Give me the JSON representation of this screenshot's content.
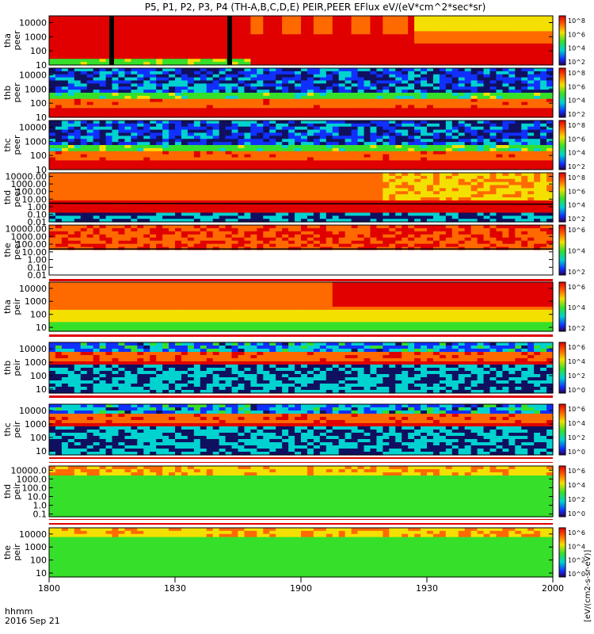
{
  "title": "P5, P1, P2, P3, P4 (TH-A,B,C,D,E) PEIR,PEER EFlux eV/(eV*cm^2*sec*sr)",
  "chart_data": {
    "type": "heatmap",
    "title": "P5, P1, P2, P3, P4 (TH-A,B,C,D,E) PEIR,PEER EFlux eV/(eV*cm^2*sec*sr)",
    "xlabel": "hhmm",
    "date": "2016 Sep 21",
    "x_ticks": [
      "1800",
      "1830",
      "1900",
      "1930",
      "2000"
    ],
    "x_range_minutes": [
      0,
      120
    ],
    "colorbar_label": "[eV/(cm2-s-sr-eV)]",
    "colors": {
      "red": "#e00000",
      "orange": "#ff6a00",
      "yellow": "#f4e000",
      "green": "#36e02a",
      "cyan": "#00d2d0",
      "blue": "#1030ff",
      "navy": "#101060"
    },
    "panels": [
      {
        "id": "tha-peer",
        "line1": "tha",
        "line2": "peer",
        "ylog": [
          10,
          30000
        ],
        "yticks": [
          "10",
          "100",
          "1000",
          "10000"
        ],
        "cbar": [
          "10^2",
          "10^4",
          "10^6",
          "10^8"
        ],
        "style": "tha-peer"
      },
      {
        "id": "thb-peer",
        "line1": "thb",
        "line2": "peer",
        "ylog": [
          10,
          30000
        ],
        "yticks": [
          "10",
          "100",
          "1000",
          "10000"
        ],
        "cbar": [
          "10^2",
          "10^4",
          "10^6",
          "10^8"
        ],
        "style": "noisy-electron"
      },
      {
        "id": "thc-peer",
        "line1": "thc",
        "line2": "peer",
        "ylog": [
          10,
          30000
        ],
        "yticks": [
          "10",
          "100",
          "1000",
          "10000"
        ],
        "cbar": [
          "10^2",
          "10^4",
          "10^6",
          "10^8"
        ],
        "style": "noisy-electron"
      },
      {
        "id": "thd-peer",
        "line1": "thd",
        "line2": "peer",
        "ylog": [
          0.01,
          30000
        ],
        "yticks": [
          "0.01",
          "0.10",
          "1.00",
          "10.00",
          "100.00",
          "1000.00",
          "10000.00"
        ],
        "cbar": [
          "10^2",
          "10^4",
          "10^6",
          "10^8"
        ],
        "style": "thd-peer"
      },
      {
        "id": "the-peer",
        "line1": "the",
        "line2": "peer",
        "ylog": [
          0.01,
          30000
        ],
        "yticks": [
          "0.01",
          "0.10",
          "1.00",
          "10.00",
          "100.00",
          "1000.00",
          "10000.00"
        ],
        "cbar": [
          "10^2",
          "10^4",
          "10^6"
        ],
        "style": "the-peer"
      },
      {
        "id": "tha-peir",
        "line1": "tha",
        "line2": "peir",
        "ylog": [
          5,
          30000
        ],
        "yticks": [
          "10",
          "100",
          "1000",
          "10000"
        ],
        "cbar": [
          "10^2",
          "10^4",
          "10^6"
        ],
        "style": "tha-peir"
      },
      {
        "id": "thb-peir",
        "line1": "thb",
        "line2": "peir",
        "ylog": [
          5,
          30000
        ],
        "yticks": [
          "10",
          "100",
          "1000",
          "10000"
        ],
        "cbar": [
          "10^0",
          "10^2",
          "10^4",
          "10^6"
        ],
        "style": "noisy-ion"
      },
      {
        "id": "thc-peir",
        "line1": "thc",
        "line2": "peir",
        "ylog": [
          5,
          30000
        ],
        "yticks": [
          "10",
          "100",
          "1000",
          "10000"
        ],
        "cbar": [
          "10^0",
          "10^2",
          "10^4",
          "10^6"
        ],
        "style": "noisy-ion"
      },
      {
        "id": "thd-peir",
        "line1": "thd",
        "line2": "peir",
        "ylog": [
          0.05,
          30000
        ],
        "yticks": [
          "0.1",
          "1.0",
          "10.0",
          "100.0",
          "1000.0",
          "10000.0"
        ],
        "cbar": [
          "10^0",
          "10^2",
          "10^4",
          "10^6"
        ],
        "style": "green-ion"
      },
      {
        "id": "the-peir",
        "line1": "the",
        "line2": "peir",
        "ylog": [
          5,
          30000
        ],
        "yticks": [
          "10",
          "100",
          "1000",
          "10000"
        ],
        "cbar": [
          "10^0",
          "10^2",
          "10^4",
          "10^6"
        ],
        "style": "green-ion"
      }
    ]
  }
}
